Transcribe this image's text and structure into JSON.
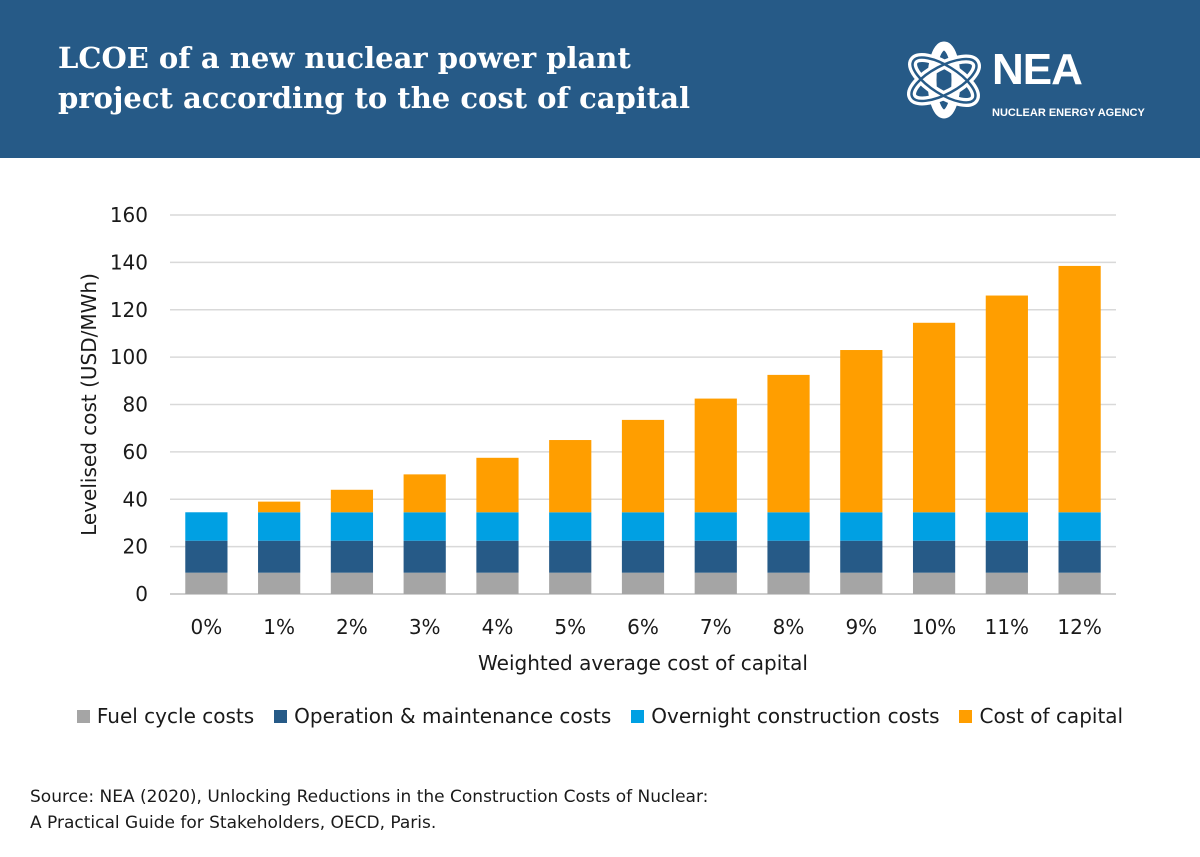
{
  "header": {
    "title_lines": [
      "LCOE of a new nuclear power plant",
      "project according to the cost of capital"
    ],
    "logo_name": "NEA",
    "logo_subtitle": "NUCLEAR ENERGY AGENCY",
    "background_color": "#265a87"
  },
  "chart_data": {
    "type": "bar",
    "stacked": true,
    "categories": [
      "0%",
      "1%",
      "2%",
      "3%",
      "4%",
      "5%",
      "6%",
      "7%",
      "8%",
      "9%",
      "10%",
      "11%",
      "12%"
    ],
    "series": [
      {
        "name": "Fuel cycle costs",
        "color": "#a5a5a5",
        "values": [
          9,
          9,
          9,
          9,
          9,
          9,
          9,
          9,
          9,
          9,
          9,
          9,
          9
        ]
      },
      {
        "name": "Operation & maintenance costs",
        "color": "#265a87",
        "values": [
          13.5,
          13.5,
          13.5,
          13.5,
          13.5,
          13.5,
          13.5,
          13.5,
          13.5,
          13.5,
          13.5,
          13.5,
          13.5
        ]
      },
      {
        "name": "Overnight construction costs",
        "color": "#00a0e3",
        "values": [
          12,
          12,
          12,
          12,
          12,
          12,
          12,
          12,
          12,
          12,
          12,
          12,
          12
        ]
      },
      {
        "name": "Cost of capital",
        "color": "#ff9e00",
        "values": [
          0,
          4.5,
          9.5,
          16,
          23,
          30.5,
          39,
          48,
          58,
          68.5,
          80,
          91.5,
          104
        ]
      }
    ],
    "xlabel": "Weighted average cost of capital",
    "ylabel": "Levelised cost (USD/MWh)",
    "ylim": [
      0,
      160
    ],
    "yticks": [
      0,
      20,
      40,
      60,
      80,
      100,
      120,
      140,
      160
    ],
    "grid": true,
    "legend_position": "bottom"
  },
  "source": {
    "lines": [
      "Source: NEA (2020), Unlocking Reductions in the Construction Costs of Nuclear:",
      "A Practical Guide for Stakeholders, OECD, Paris."
    ]
  }
}
